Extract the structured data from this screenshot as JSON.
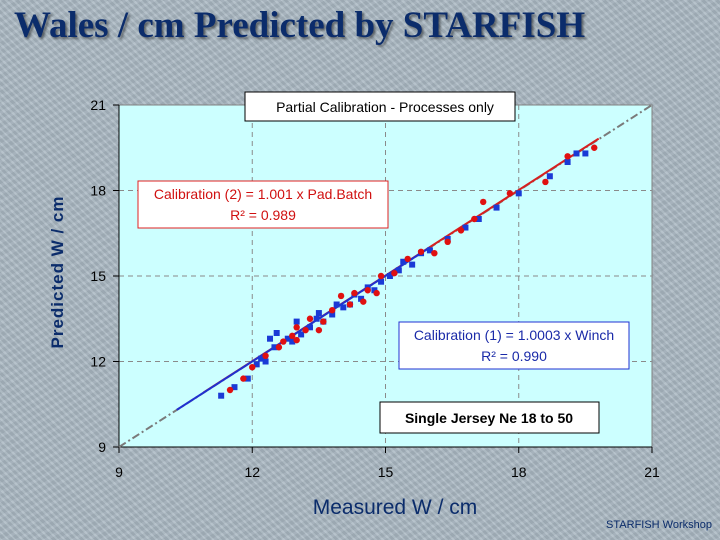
{
  "slide": {
    "title": "Wales / cm Predicted by STARFISH",
    "footer": "STARFISH Workshop"
  },
  "colors": {
    "plot_bg": "#ccffff",
    "blue_series": "#1a3ad6",
    "red_series": "#e01010",
    "fit_red": "#d62020",
    "fit_blue": "#2030d0",
    "identity_line": "#7a7a7a",
    "title": "#0b2c6b"
  },
  "chart_data": {
    "type": "scatter",
    "title": "Partial Calibration - Processes only",
    "xlabel": "Measured W / cm",
    "ylabel": "Predicted W / cm",
    "xlim": [
      9,
      21
    ],
    "ylim": [
      9,
      21
    ],
    "xticks": [
      9,
      12,
      15,
      18,
      21
    ],
    "yticks": [
      9,
      12,
      15,
      18,
      21
    ],
    "grid": true,
    "series": [
      {
        "name": "Calibration (1) - Winch",
        "marker": "square",
        "color": "#1a3ad6",
        "points": [
          [
            11.3,
            10.8
          ],
          [
            11.6,
            11.1
          ],
          [
            11.9,
            11.4
          ],
          [
            12.1,
            11.9
          ],
          [
            12.2,
            12.1
          ],
          [
            12.3,
            12.0
          ],
          [
            12.4,
            12.8
          ],
          [
            12.5,
            12.5
          ],
          [
            12.55,
            13.0
          ],
          [
            12.8,
            12.8
          ],
          [
            12.9,
            12.7
          ],
          [
            13.0,
            13.4
          ],
          [
            13.1,
            12.95
          ],
          [
            13.3,
            13.2
          ],
          [
            13.45,
            13.5
          ],
          [
            13.5,
            13.7
          ],
          [
            13.6,
            13.4
          ],
          [
            13.8,
            13.65
          ],
          [
            13.9,
            14.0
          ],
          [
            14.05,
            13.9
          ],
          [
            14.2,
            14.0
          ],
          [
            14.3,
            14.35
          ],
          [
            14.45,
            14.2
          ],
          [
            14.6,
            14.6
          ],
          [
            14.75,
            14.5
          ],
          [
            14.9,
            14.8
          ],
          [
            15.1,
            15.0
          ],
          [
            15.3,
            15.2
          ],
          [
            15.4,
            15.5
          ],
          [
            15.6,
            15.4
          ],
          [
            15.8,
            15.8
          ],
          [
            16.0,
            15.9
          ],
          [
            16.4,
            16.3
          ],
          [
            16.8,
            16.7
          ],
          [
            17.1,
            17.0
          ],
          [
            17.5,
            17.4
          ],
          [
            18.0,
            17.9
          ],
          [
            18.7,
            18.5
          ],
          [
            19.1,
            19.0
          ],
          [
            19.3,
            19.3
          ],
          [
            19.5,
            19.3
          ]
        ]
      },
      {
        "name": "Calibration (2) - Pad.Batch",
        "marker": "circle",
        "color": "#e01010",
        "points": [
          [
            11.5,
            11.0
          ],
          [
            11.8,
            11.4
          ],
          [
            12.0,
            11.8
          ],
          [
            12.3,
            12.2
          ],
          [
            12.6,
            12.5
          ],
          [
            12.7,
            12.7
          ],
          [
            12.9,
            12.9
          ],
          [
            13.0,
            12.75
          ],
          [
            13.0,
            13.2
          ],
          [
            13.2,
            13.1
          ],
          [
            13.3,
            13.5
          ],
          [
            13.5,
            13.1
          ],
          [
            13.6,
            13.4
          ],
          [
            13.8,
            13.8
          ],
          [
            14.0,
            14.3
          ],
          [
            14.2,
            14.0
          ],
          [
            14.3,
            14.4
          ],
          [
            14.5,
            14.1
          ],
          [
            14.6,
            14.5
          ],
          [
            14.8,
            14.4
          ],
          [
            14.9,
            15.0
          ],
          [
            15.2,
            15.1
          ],
          [
            15.5,
            15.6
          ],
          [
            15.8,
            15.85
          ],
          [
            16.1,
            15.8
          ],
          [
            16.4,
            16.2
          ],
          [
            16.7,
            16.6
          ],
          [
            17.0,
            17.0
          ],
          [
            17.2,
            17.6
          ],
          [
            17.8,
            17.9
          ],
          [
            18.6,
            18.3
          ],
          [
            19.1,
            19.2
          ],
          [
            19.7,
            19.5
          ]
        ]
      }
    ],
    "fit_lines": [
      {
        "name": "Calibration (2)",
        "slope": 1.001,
        "color": "#d62020",
        "x_range": [
          10.9,
          19.8
        ]
      },
      {
        "name": "Calibration (1)",
        "slope": 1.0003,
        "color": "#2030d0",
        "x_range": [
          10.3,
          16.0
        ]
      }
    ],
    "identity_line": {
      "x_range": [
        9,
        21
      ],
      "style": "dash-dot"
    },
    "annotations": {
      "calibration2_line1": "Calibration (2) = 1.001 x Pad.Batch",
      "calibration2_line2": "R² = 0.989",
      "calibration1_line1": "Calibration (1) = 1.0003 x Winch",
      "calibration1_line2": "R² = 0.990",
      "single_jersey": "Single Jersey Ne 18 to 50"
    }
  }
}
